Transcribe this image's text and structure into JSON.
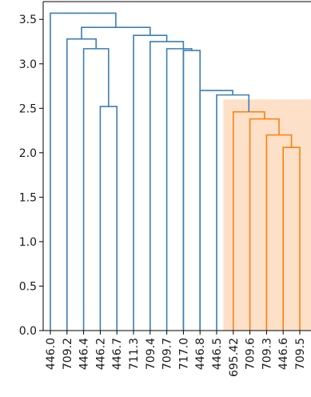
{
  "chart_data": {
    "type": "dendrogram",
    "title": "",
    "xlabel": "",
    "ylabel": "",
    "ylim": [
      0,
      3.7
    ],
    "yticks": [
      0.0,
      0.5,
      1.0,
      1.5,
      2.0,
      2.5,
      3.0,
      3.5
    ],
    "ytick_labels": [
      "0.0",
      "0.5",
      "1.0",
      "1.5",
      "2.0",
      "2.5",
      "3.0",
      "3.5"
    ],
    "leaves": [
      "446.0",
      "709.2",
      "446.4",
      "446.2",
      "446.7",
      "711.3",
      "709.4",
      "709.7",
      "717.0",
      "446.8",
      "446.5",
      "695.42",
      "709.6",
      "709.3",
      "446.6",
      "709.5"
    ],
    "colors": {
      "main": "#3a7fb5",
      "cluster": "#ff7f0e",
      "highlight": "#fde0c8"
    },
    "highlight": {
      "from_leaf": 11,
      "to_leaf": 15,
      "y_top": 2.6,
      "color": "#fde0c8"
    },
    "links": [
      {
        "left": 3,
        "right": 4,
        "height": 2.52,
        "color": "cluster_main"
      },
      {
        "left": 2,
        "right": 3.5,
        "height": 3.17,
        "color": "main"
      },
      {
        "left": 1,
        "right": 2.75,
        "height": 3.28,
        "color": "main"
      },
      {
        "left": 8,
        "right": 9,
        "height": 3.15,
        "color": "main"
      },
      {
        "left": 7,
        "right": 8.5,
        "height": 3.17,
        "color": "main"
      },
      {
        "left": 14,
        "right": 15,
        "height": 2.06,
        "color": "cluster"
      },
      {
        "left": 13,
        "right": 14.5,
        "height": 2.2,
        "color": "cluster"
      },
      {
        "left": 12,
        "right": 13.75,
        "height": 2.38,
        "color": "cluster"
      },
      {
        "left": 11,
        "right": 12.875,
        "height": 2.46,
        "color": "cluster"
      },
      {
        "left": 10,
        "right": 11.9375,
        "height": 2.65,
        "color": "main"
      },
      {
        "left": 9,
        "right": 10.96875,
        "height": 2.7,
        "color": "main"
      },
      {
        "left": 6,
        "right": 8,
        "height": 3.25,
        "color": "main"
      },
      {
        "left": 5,
        "right": 7,
        "height": 3.32,
        "color": "main"
      },
      {
        "left": 1.875,
        "right": 6,
        "height": 3.41,
        "color": "main"
      },
      {
        "left": 0,
        "right": 3.9375,
        "height": 3.57,
        "color": "main"
      }
    ]
  }
}
